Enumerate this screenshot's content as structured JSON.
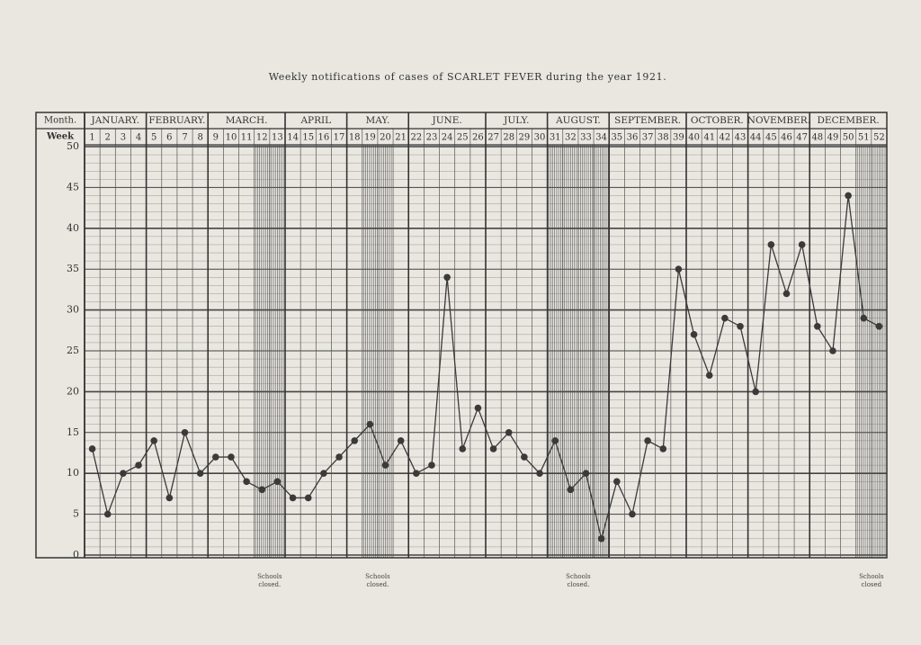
{
  "chart_data": {
    "type": "line",
    "title": "Weekly notifications of cases of SCARLET FEVER during the year 1921.",
    "month_header": "Month.",
    "week_header": "Week",
    "months": [
      {
        "label": "JANUARY.",
        "weeks": [
          1,
          4
        ]
      },
      {
        "label": "FEBRUARY.",
        "weeks": [
          5,
          8
        ]
      },
      {
        "label": "MARCH.",
        "weeks": [
          9,
          13
        ]
      },
      {
        "label": "APRIL",
        "weeks": [
          14,
          17
        ]
      },
      {
        "label": "MAY.",
        "weeks": [
          18,
          21
        ]
      },
      {
        "label": "JUNE.",
        "weeks": [
          22,
          26
        ]
      },
      {
        "label": "JULY.",
        "weeks": [
          27,
          30
        ]
      },
      {
        "label": "AUGUST.",
        "weeks": [
          31,
          34
        ]
      },
      {
        "label": "SEPTEMBER.",
        "weeks": [
          35,
          39
        ]
      },
      {
        "label": "OCTOBER.",
        "weeks": [
          40,
          43
        ]
      },
      {
        "label": "NOVEMBER.",
        "weeks": [
          44,
          47
        ]
      },
      {
        "label": "DECEMBER.",
        "weeks": [
          48,
          52
        ]
      }
    ],
    "x": [
      1,
      2,
      3,
      4,
      5,
      6,
      7,
      8,
      9,
      10,
      11,
      12,
      13,
      14,
      15,
      16,
      17,
      18,
      19,
      20,
      21,
      22,
      23,
      24,
      25,
      26,
      27,
      28,
      29,
      30,
      31,
      32,
      33,
      34,
      35,
      36,
      37,
      38,
      39,
      40,
      41,
      42,
      43,
      44,
      45,
      46,
      47,
      48,
      49,
      50,
      51,
      52
    ],
    "xlim": [
      1,
      52
    ],
    "series": [
      {
        "name": "Cases",
        "color": "#3a3a3a",
        "values": [
          13,
          5,
          10,
          11,
          14,
          7,
          15,
          10,
          12,
          12,
          9,
          8,
          9,
          7,
          7,
          10,
          12,
          14,
          16,
          11,
          14,
          10,
          11,
          34,
          13,
          18,
          13,
          15,
          12,
          10,
          14,
          8,
          10,
          2,
          9,
          5,
          14,
          13,
          35,
          27,
          22,
          29,
          28,
          20,
          38,
          32,
          38,
          28,
          25,
          44,
          29,
          28
        ]
      }
    ],
    "ylim": [
      0,
      50
    ],
    "yticks": [
      0,
      5,
      10,
      15,
      20,
      25,
      30,
      35,
      40,
      45,
      50
    ],
    "grid": true,
    "annotations": [
      {
        "text": "Schools closed.",
        "weeks": [
          12,
          13
        ]
      },
      {
        "text": "Schools closed.",
        "weeks": [
          19,
          20
        ]
      },
      {
        "text": "Schools closed.",
        "weeks": [
          31,
          34
        ]
      },
      {
        "text": "Schools closed",
        "weeks": [
          51,
          52
        ]
      }
    ]
  }
}
